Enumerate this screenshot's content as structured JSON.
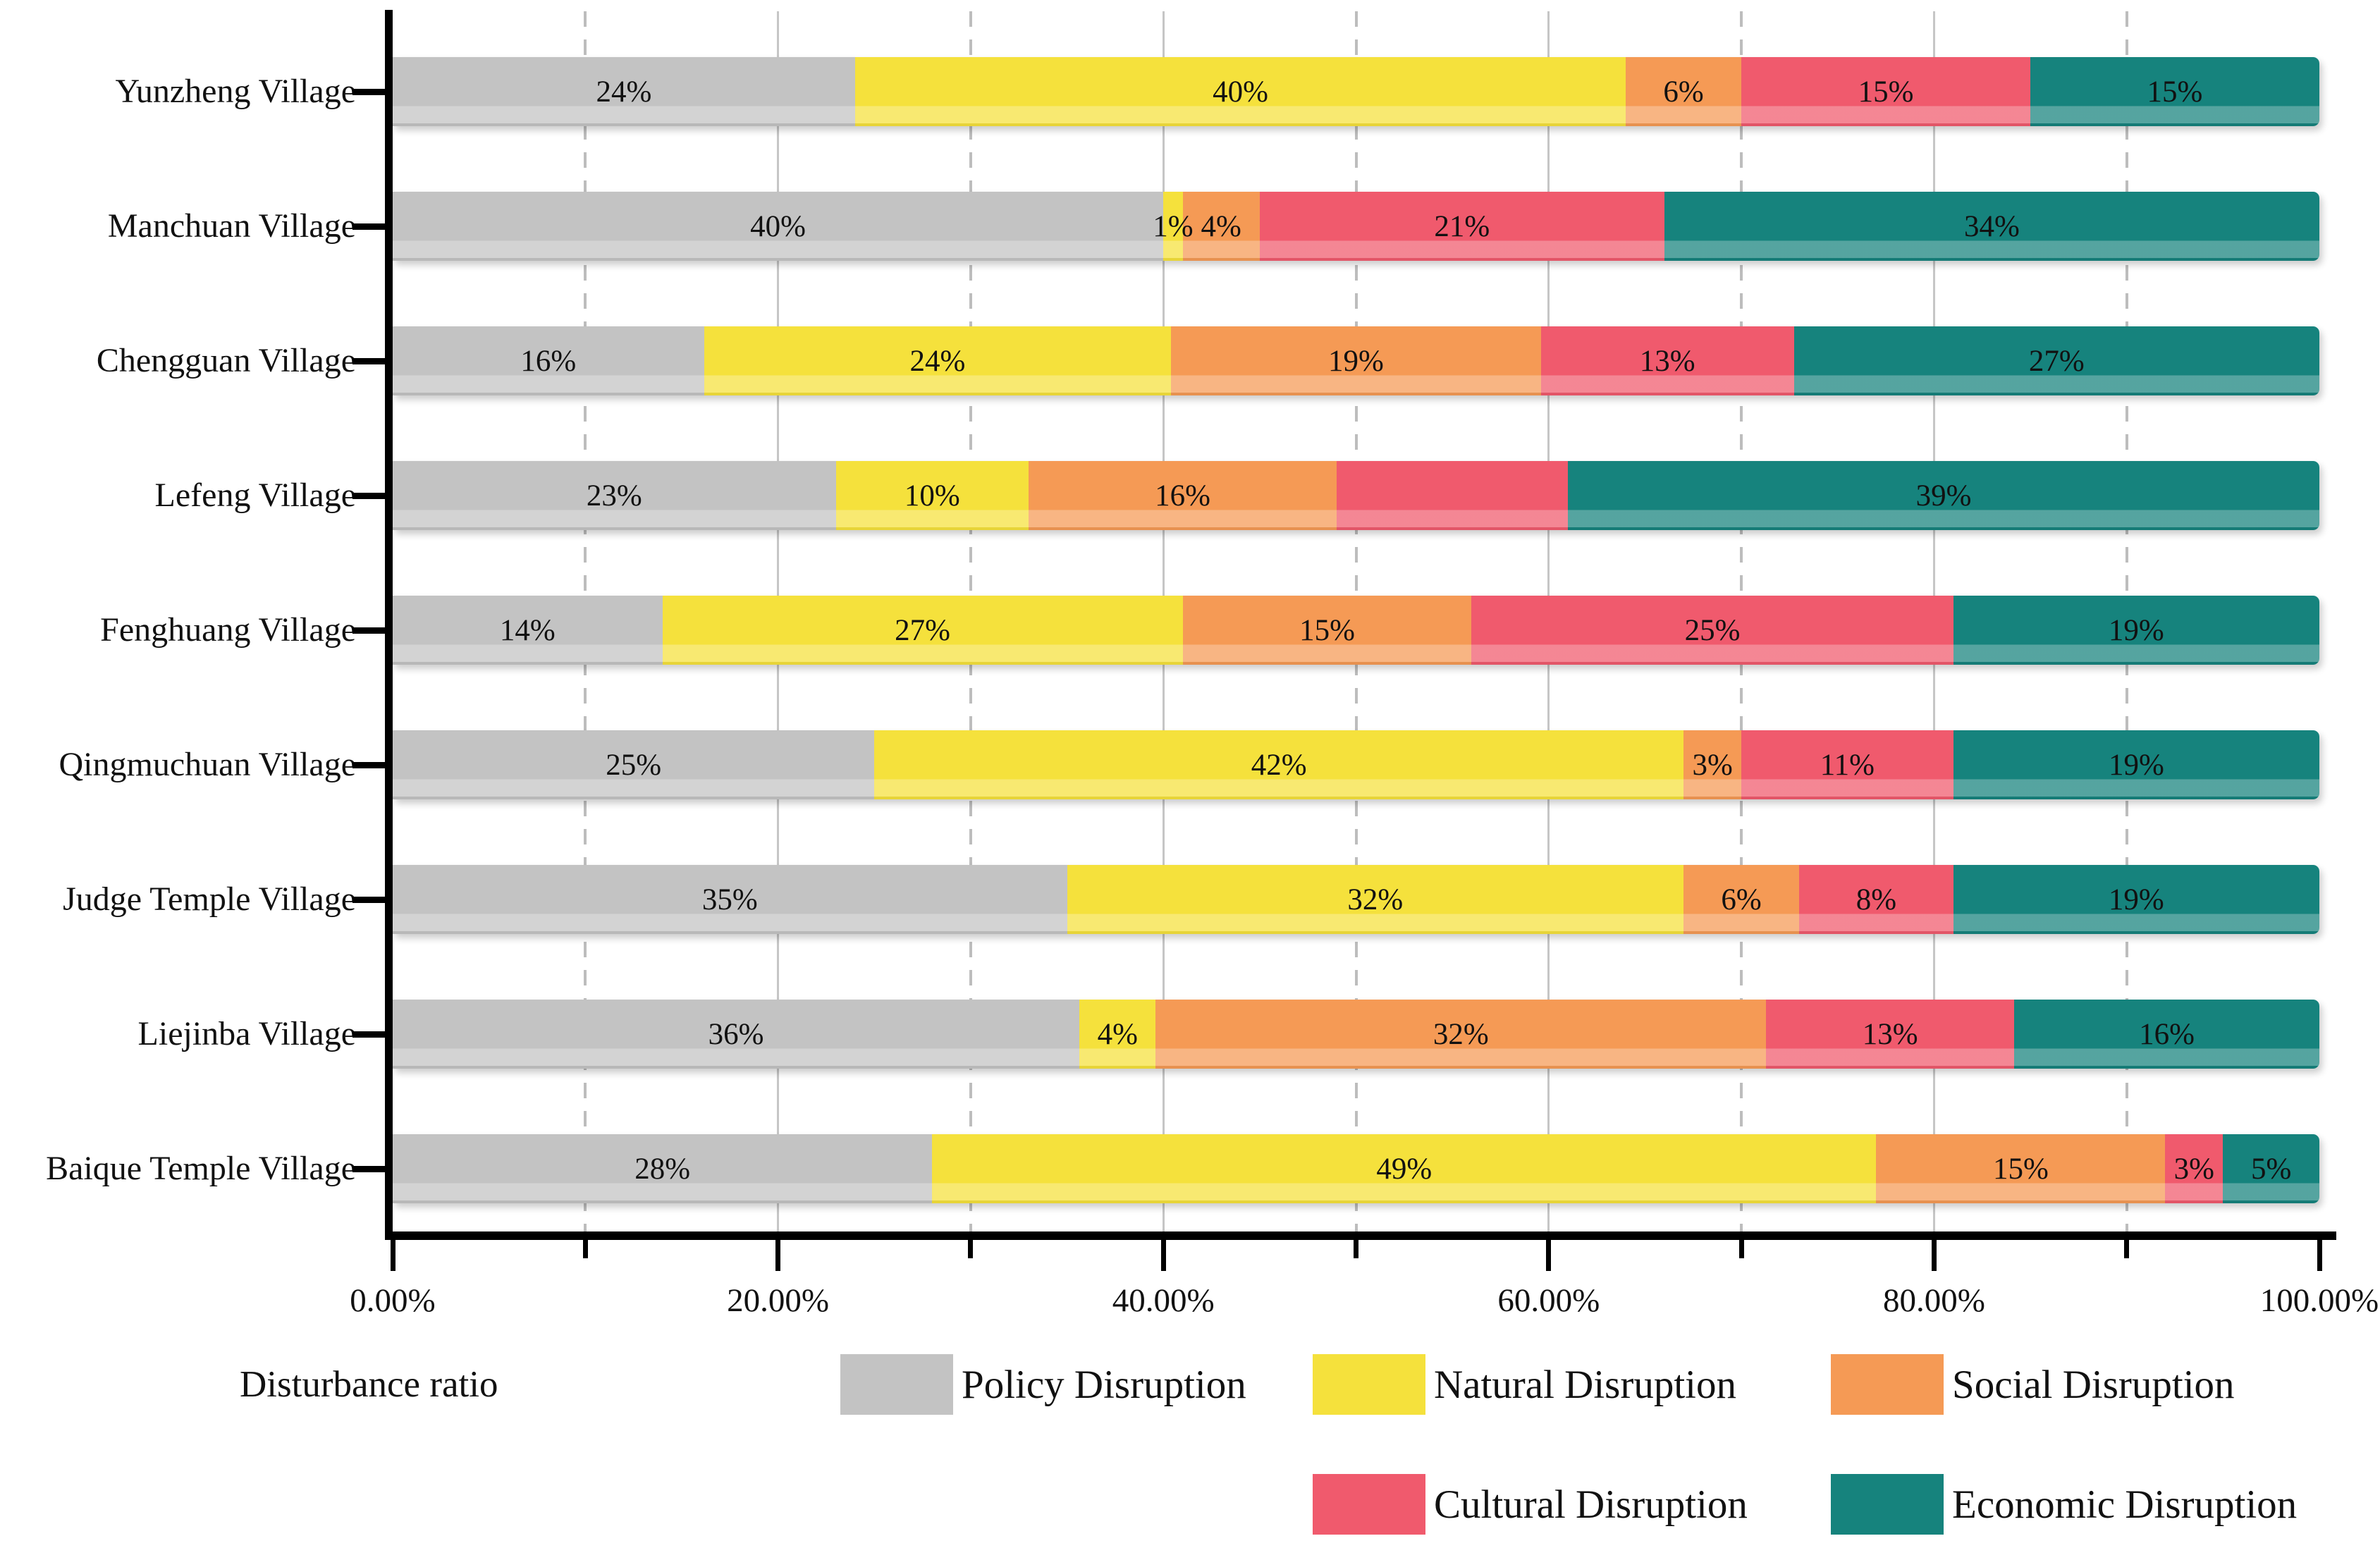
{
  "chart_data": {
    "type": "bar",
    "orientation": "horizontal",
    "stacked": true,
    "axis_label": "Disturbance ratio",
    "xlim": [
      0,
      100
    ],
    "x_tick_labels": [
      "0.00%",
      "20.00%",
      "40.00%",
      "60.00%",
      "80.00%",
      "100.00%"
    ],
    "grid": {
      "solid_at": [
        20,
        40,
        60,
        80
      ],
      "dashed_at": [
        10,
        30,
        50,
        70,
        90
      ]
    },
    "legend_position": "bottom",
    "legend": [
      {
        "name": "Policy Disruption",
        "color": "#c3c3c3"
      },
      {
        "name": "Natural Disruption",
        "color": "#f5e13c"
      },
      {
        "name": "Social Disruption",
        "color": "#f59a55"
      },
      {
        "name": "Cultural Disruption",
        "color": "#f05a6d"
      },
      {
        "name": "Economic Disruption",
        "color": "#16837d"
      }
    ],
    "categories": [
      "Yunzheng Village",
      "Manchuan Village",
      "Chengguan Village",
      "Lefeng Village",
      "Fenghuang Village",
      "Qingmuchuan Village",
      "Judge Temple Village",
      "Liejinba Village",
      "Baique Temple Village"
    ],
    "series": [
      {
        "name": "Policy Disruption",
        "values": [
          24,
          40,
          16,
          23,
          14,
          25,
          35,
          36,
          28
        ]
      },
      {
        "name": "Natural Disruption",
        "values": [
          40,
          1,
          24,
          10,
          27,
          42,
          32,
          4,
          49
        ]
      },
      {
        "name": "Social Disruption",
        "values": [
          6,
          4,
          19,
          16,
          15,
          3,
          6,
          32,
          15
        ]
      },
      {
        "name": "Cultural Disruption",
        "values": [
          15,
          21,
          13,
          12,
          25,
          11,
          8,
          13,
          3
        ]
      },
      {
        "name": "Economic Disruption",
        "values": [
          15,
          34,
          27,
          39,
          19,
          19,
          19,
          16,
          5
        ]
      }
    ],
    "rows": [
      {
        "category": "Yunzheng Village",
        "segments": [
          {
            "value": 24,
            "label": "24%"
          },
          {
            "value": 40,
            "label": "40%"
          },
          {
            "value": 6,
            "label": "6%"
          },
          {
            "value": 15,
            "label": "15%"
          },
          {
            "value": 15,
            "label": "15%"
          }
        ]
      },
      {
        "category": "Manchuan Village",
        "segments": [
          {
            "value": 40,
            "label": "40%"
          },
          {
            "value": 1,
            "label": "1%"
          },
          {
            "value": 4,
            "label": "4%"
          },
          {
            "value": 21,
            "label": "21%"
          },
          {
            "value": 34,
            "label": "34%"
          }
        ]
      },
      {
        "category": "Chengguan Village",
        "segments": [
          {
            "value": 16,
            "label": "16%"
          },
          {
            "value": 24,
            "label": "24%"
          },
          {
            "value": 19,
            "label": "19%"
          },
          {
            "value": 13,
            "label": "13%"
          },
          {
            "value": 27,
            "label": "27%"
          }
        ]
      },
      {
        "category": "Lefeng Village",
        "segments": [
          {
            "value": 23,
            "label": "23%"
          },
          {
            "value": 10,
            "label": "10%"
          },
          {
            "value": 16,
            "label": "16%"
          },
          {
            "value": 12,
            "label": ""
          },
          {
            "value": 39,
            "label": "39%"
          }
        ]
      },
      {
        "category": "Fenghuang Village",
        "segments": [
          {
            "value": 14,
            "label": "14%"
          },
          {
            "value": 27,
            "label": "27%"
          },
          {
            "value": 15,
            "label": "15%"
          },
          {
            "value": 25,
            "label": "25%"
          },
          {
            "value": 19,
            "label": "19%"
          }
        ]
      },
      {
        "category": "Qingmuchuan Village",
        "segments": [
          {
            "value": 25,
            "label": "25%"
          },
          {
            "value": 42,
            "label": "42%"
          },
          {
            "value": 3,
            "label": "3%"
          },
          {
            "value": 11,
            "label": "11%"
          },
          {
            "value": 19,
            "label": "19%"
          }
        ]
      },
      {
        "category": "Judge Temple Village",
        "segments": [
          {
            "value": 35,
            "label": "35%"
          },
          {
            "value": 32,
            "label": "32%"
          },
          {
            "value": 6,
            "label": "6%"
          },
          {
            "value": 8,
            "label": "8%"
          },
          {
            "value": 19,
            "label": "19%"
          }
        ]
      },
      {
        "category": "Liejinba Village",
        "segments": [
          {
            "value": 36,
            "label": "36%"
          },
          {
            "value": 4,
            "label": "4%"
          },
          {
            "value": 32,
            "label": "32%"
          },
          {
            "value": 13,
            "label": "13%"
          },
          {
            "value": 16,
            "label": "16%"
          }
        ]
      },
      {
        "category": "Baique Temple Village",
        "segments": [
          {
            "value": 28,
            "label": "28%"
          },
          {
            "value": 49,
            "label": "49%"
          },
          {
            "value": 15,
            "label": "15%"
          },
          {
            "value": 3,
            "label": "3%"
          },
          {
            "value": 5,
            "label": "5%"
          }
        ]
      }
    ]
  }
}
